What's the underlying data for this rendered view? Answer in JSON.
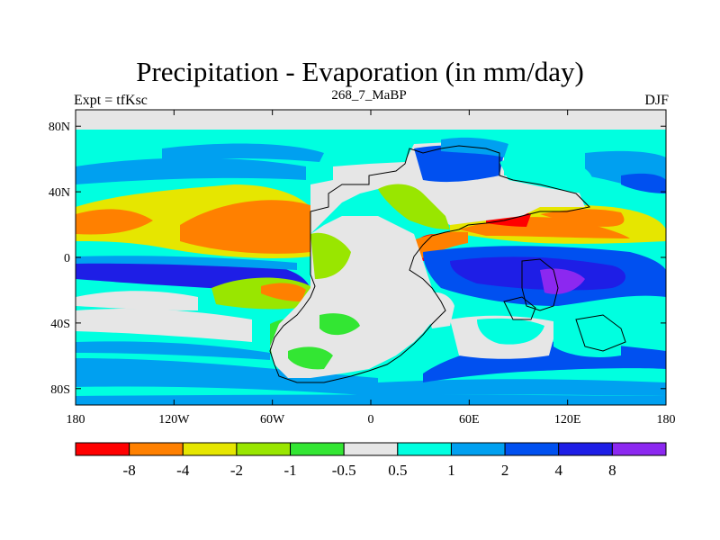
{
  "chart_data": {
    "type": "heatmap",
    "title": "Precipitation - Evaporation (in mm/day)",
    "subtitle": "268_7_MaBP",
    "left_label": "Expt = tfKsc",
    "right_label": "DJF",
    "xaxis": {
      "range": [
        -180,
        180
      ],
      "ticks": [
        -180,
        -120,
        -60,
        0,
        60,
        120,
        180
      ],
      "tick_labels": [
        "180",
        "120W",
        "60W",
        "0",
        "60E",
        "120E",
        "180"
      ]
    },
    "yaxis": {
      "range": [
        -90,
        90
      ],
      "ticks": [
        -80,
        -40,
        0,
        40,
        80
      ],
      "tick_labels": [
        "80S",
        "40S",
        "0",
        "40N",
        "80N"
      ]
    },
    "colorbar": {
      "colors": [
        "#ff0000",
        "#ff8000",
        "#e6e600",
        "#99e600",
        "#33e633",
        "#e6e6e6",
        "#00ffe0",
        "#00a0f0",
        "#0050f0",
        "#1e1ee6",
        "#8c28f0"
      ],
      "labels": [
        "-8",
        "-4",
        "-2",
        "-1",
        "-0.5",
        "0.5",
        "1",
        "2",
        "4",
        "8"
      ]
    }
  }
}
